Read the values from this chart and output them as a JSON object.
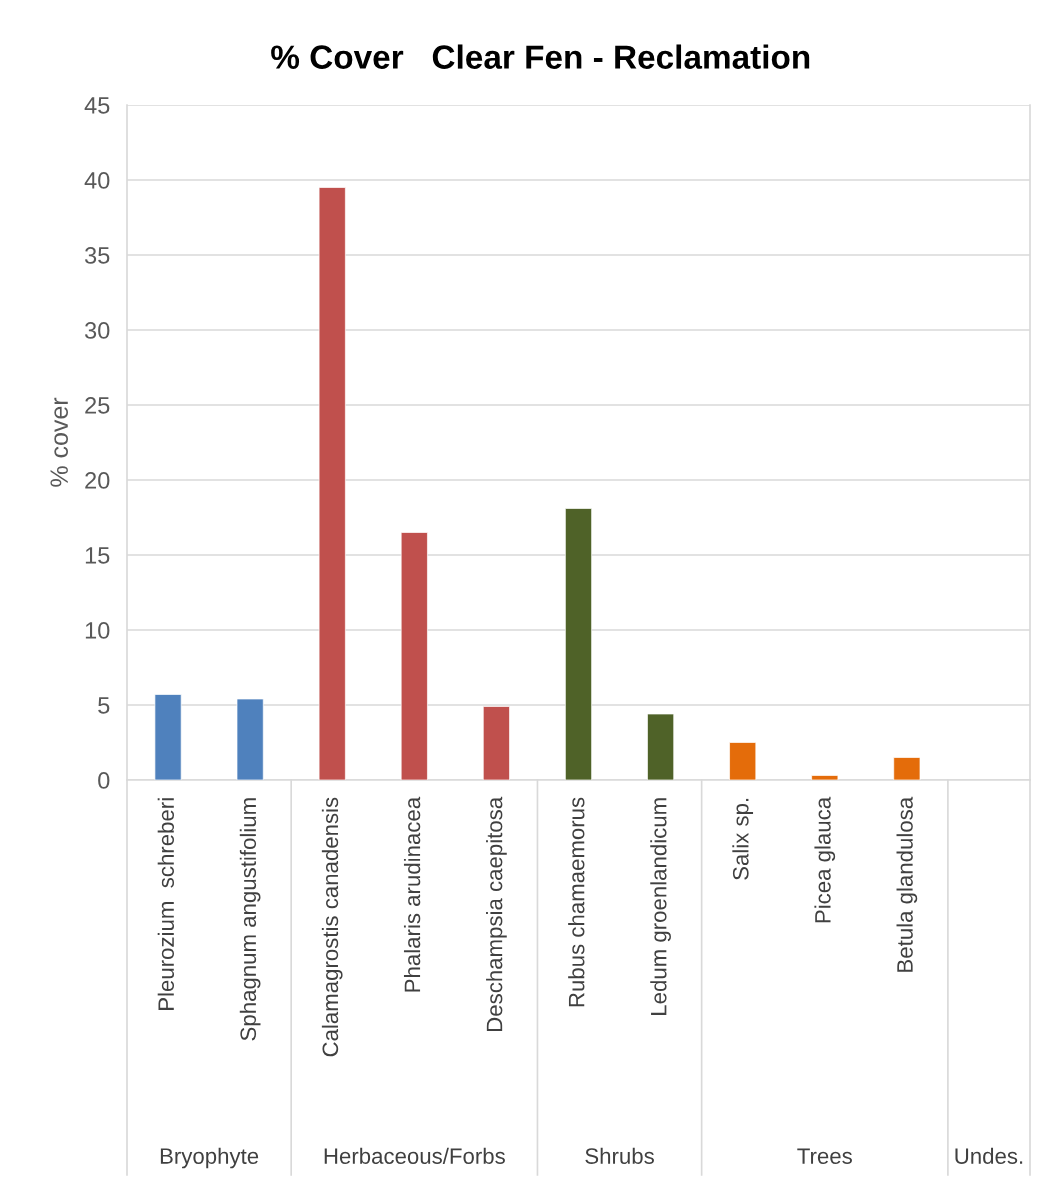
{
  "chart_data": {
    "type": "bar",
    "title": "% Cover   Clear Fen - Reclamation",
    "ylabel": "% cover",
    "categories": [
      "Pleurozium  schreberi",
      "Sphagnum angustifolium",
      "Calamagrostis canadensis",
      "Phalaris arudinacea",
      "Deschampsia caepitosa",
      "Rubus chamaemorus",
      "Ledum groenlandicum",
      "Salix sp.",
      "Picea glauca",
      "Betula glandulosa",
      null
    ],
    "series": [
      {
        "color": "#4f81bd",
        "values": [
          5.7,
          5.4,
          null,
          null,
          null,
          null,
          null,
          null,
          null,
          null,
          null
        ]
      },
      {
        "color": "#c0504d",
        "values": [
          null,
          null,
          39.5,
          16.5,
          4.9,
          null,
          null,
          null,
          null,
          null,
          null
        ]
      },
      {
        "color": "#4f6228",
        "values": [
          null,
          null,
          null,
          null,
          null,
          18.1,
          4.4,
          null,
          null,
          null,
          null
        ]
      },
      {
        "color": "#e46c0a",
        "values": [
          null,
          null,
          null,
          null,
          null,
          null,
          null,
          2.5,
          0.3,
          1.5,
          null
        ]
      }
    ],
    "annotations": [
      "Bryophyte",
      "Herbaceous/Forbs",
      "Shrubs",
      "Trees",
      "Undes."
    ],
    "ylim": [
      0,
      45
    ],
    "yticks": [
      0,
      5,
      10,
      15,
      20,
      25,
      30,
      35,
      40,
      45
    ],
    "grid": "y"
  }
}
